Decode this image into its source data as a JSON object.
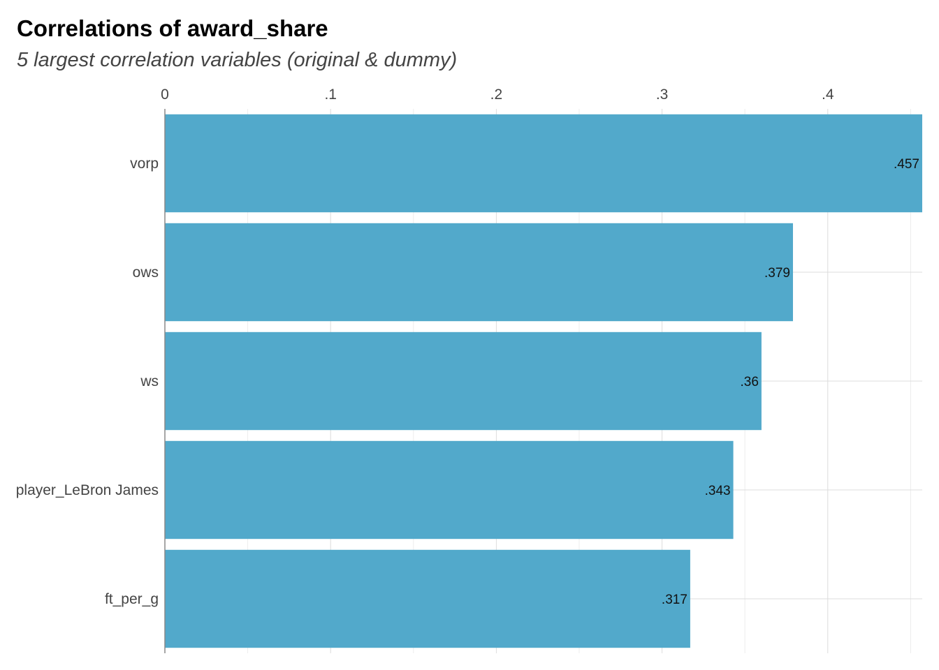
{
  "chart_data": {
    "type": "bar",
    "orientation": "horizontal",
    "title": "Correlations of award_share",
    "subtitle": "5 largest correlation variables (original & dummy)",
    "categories": [
      "vorp",
      "ows",
      "ws",
      "player_LeBron James",
      "ft_per_g"
    ],
    "values": [
      0.457,
      0.379,
      0.36,
      0.343,
      0.317
    ],
    "value_labels": [
      ".457",
      ".379",
      ".36",
      ".343",
      ".317"
    ],
    "x_ticks": [
      0,
      0.1,
      0.2,
      0.3,
      0.4
    ],
    "x_tick_labels": [
      "0",
      ".1",
      ".2",
      ".3",
      ".4"
    ],
    "xlim": [
      0,
      0.457
    ],
    "x_axis_position": "top",
    "bar_color": "#52a9cb",
    "grid": true,
    "legend": "none"
  }
}
